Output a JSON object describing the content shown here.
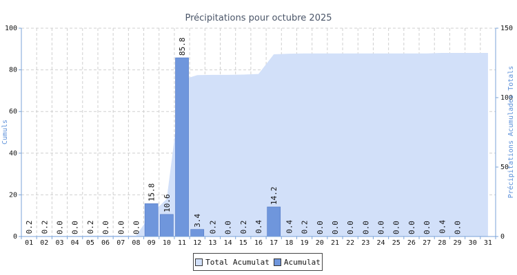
{
  "chart_data": {
    "type": "bar",
    "title": "Précipitations pour octubre 2025",
    "ylabel_left": "Cumuls",
    "ylabel_right": "Précipitations Acumulades Totals",
    "ylim_left": [
      0,
      100
    ],
    "ylim_right": [
      0,
      150
    ],
    "yticks_left": [
      "0",
      "20",
      "40",
      "60",
      "80",
      "100"
    ],
    "yticks_right": [
      "0",
      "50",
      "100",
      "150"
    ],
    "grid": true,
    "legend_position": "bottom-center",
    "categories": [
      "01",
      "02",
      "03",
      "04",
      "05",
      "06",
      "07",
      "08",
      "09",
      "10",
      "11",
      "12",
      "13",
      "14",
      "15",
      "16",
      "17",
      "18",
      "19",
      "20",
      "21",
      "22",
      "23",
      "24",
      "25",
      "26",
      "27",
      "28",
      "29",
      "30",
      "31"
    ],
    "series": [
      {
        "name": "Acumulat",
        "type": "bar",
        "axis": "left",
        "color": "#6f96dc",
        "values": [
          0.2,
          0.2,
          0.0,
          0.0,
          0.2,
          0.0,
          0.0,
          0.0,
          15.8,
          10.6,
          85.8,
          3.4,
          0.2,
          0.0,
          0.2,
          0.4,
          14.2,
          0.4,
          0.2,
          0.0,
          0.0,
          0.0,
          0.0,
          0.0,
          0.0,
          0.0,
          0.0,
          0.4,
          0.0,
          null,
          null
        ],
        "labels": [
          "0.2",
          "0.2",
          "0.0",
          "0.0",
          "0.2",
          "0.0",
          "0.0",
          "0.0",
          "15.8",
          "10.6",
          "85.8",
          "3.4",
          "0.2",
          "0.0",
          "0.2",
          "0.4",
          "14.2",
          "0.4",
          "0.2",
          "0.0",
          "0.0",
          "0.0",
          "0.0",
          "0.0",
          "0.0",
          "0.0",
          "0.0",
          "0.4",
          "0.0",
          "",
          ""
        ]
      },
      {
        "name": "Total Acumulat",
        "type": "area",
        "axis": "right",
        "color": "#d2e0f9",
        "values": [
          0.2,
          0.4,
          0.4,
          0.4,
          0.6,
          0.6,
          0.6,
          0.6,
          16.4,
          27.0,
          112.8,
          116.2,
          116.4,
          116.4,
          116.6,
          117.0,
          131.2,
          131.6,
          131.8,
          131.8,
          131.8,
          131.8,
          131.8,
          131.8,
          131.8,
          131.8,
          131.8,
          132.2,
          132.2,
          132.2,
          132.2
        ]
      }
    ]
  },
  "legend": {
    "total_label": "Total Acumulat",
    "bar_label": "Acumulat",
    "total_color": "#d2e0f9",
    "bar_color": "#6f96dc"
  }
}
